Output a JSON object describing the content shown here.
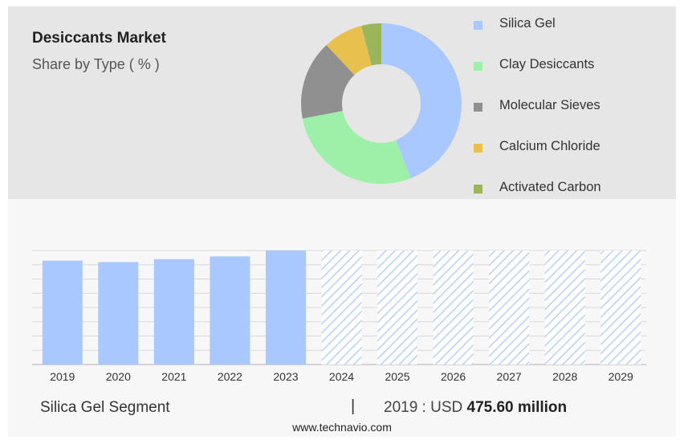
{
  "header": {
    "title": "Desiccants Market",
    "subtitle": "Share by Type ( % )"
  },
  "legend": [
    {
      "label": "Silica Gel",
      "color": "#a9c8ff"
    },
    {
      "label": "Clay Desiccants",
      "color": "#9ef0a8"
    },
    {
      "label": "Molecular Sieves",
      "color": "#909090"
    },
    {
      "label": "Calcium Chloride",
      "color": "#e8c04e"
    },
    {
      "label": "Activated Carbon",
      "color": "#9bb55a"
    }
  ],
  "footer": {
    "segment": "Silica Gel Segment",
    "separator": "|",
    "year_label": "2019 : USD ",
    "value": "475.60 million",
    "source": "www.technavio.com"
  },
  "chart_data": [
    {
      "type": "pie",
      "title": "Share by Type ( % )",
      "series": [
        {
          "name": "Silica Gel",
          "value": 44
        },
        {
          "name": "Clay Desiccants",
          "value": 28
        },
        {
          "name": "Molecular Sieves",
          "value": 16
        },
        {
          "name": "Calcium Chloride",
          "value": 8
        },
        {
          "name": "Activated Carbon",
          "value": 4
        }
      ]
    },
    {
      "type": "bar",
      "categories": [
        "2019",
        "2020",
        "2021",
        "2022",
        "2023",
        "2024",
        "2025",
        "2026",
        "2027",
        "2028",
        "2029"
      ],
      "values": [
        475.6,
        469,
        482,
        495,
        522,
        null,
        null,
        null,
        null,
        null,
        null
      ],
      "forecast_categories": [
        "2024",
        "2025",
        "2026",
        "2027",
        "2028",
        "2029"
      ],
      "ylim": [
        0,
        522
      ],
      "grid": true,
      "bar_color": "#a9c8ff"
    }
  ]
}
